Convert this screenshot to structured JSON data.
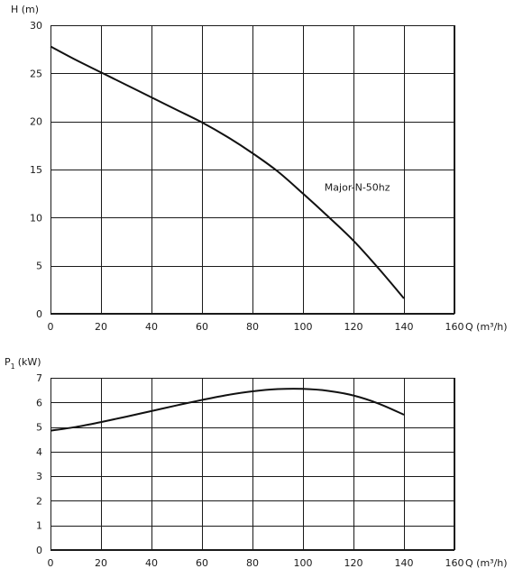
{
  "chart_data": [
    {
      "type": "line",
      "ylabel": "H (m)",
      "xlabel": "Q (m³/h)",
      "xlim": [
        0,
        160
      ],
      "ylim": [
        0,
        30
      ],
      "xticks": [
        "0",
        "20",
        "40",
        "60",
        "80",
        "100",
        "120",
        "140",
        "160"
      ],
      "yticks": [
        "0",
        "5",
        "10",
        "15",
        "20",
        "25",
        "30"
      ],
      "grid": true,
      "series": [
        {
          "name": "Major-N-50hz",
          "x": [
            0,
            10,
            20,
            30,
            40,
            50,
            60,
            70,
            80,
            90,
            100,
            110,
            120,
            130,
            140
          ],
          "y": [
            27.8,
            26.4,
            25.1,
            23.8,
            22.5,
            21.2,
            19.9,
            18.4,
            16.7,
            14.8,
            12.5,
            10.1,
            7.6,
            4.7,
            1.6
          ]
        }
      ]
    },
    {
      "type": "line",
      "ylabel": "P1 (kW)",
      "xlabel": "Q (m³/h)",
      "xlim": [
        0,
        160
      ],
      "ylim": [
        0,
        7
      ],
      "xticks": [
        "0",
        "20",
        "40",
        "60",
        "80",
        "100",
        "120",
        "140",
        "160"
      ],
      "yticks": [
        "0",
        "1",
        "2",
        "3",
        "4",
        "5",
        "6",
        "7"
      ],
      "grid": true,
      "series": [
        {
          "name": "",
          "x": [
            0,
            10,
            20,
            30,
            40,
            50,
            60,
            70,
            80,
            90,
            100,
            110,
            120,
            130,
            140
          ],
          "y": [
            4.85,
            5.0,
            5.2,
            5.42,
            5.65,
            5.88,
            6.1,
            6.3,
            6.45,
            6.54,
            6.55,
            6.47,
            6.28,
            5.95,
            5.5
          ]
        }
      ]
    }
  ],
  "ylabel_p_main": "P",
  "ylabel_p_sub": "1",
  "ylabel_p_unit": "(kW)"
}
